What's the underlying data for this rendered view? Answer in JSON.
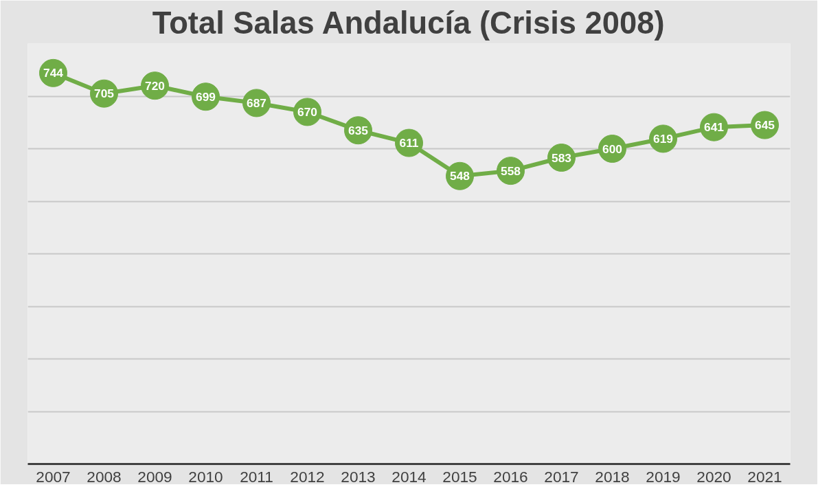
{
  "chart_data": {
    "type": "line",
    "title": "Total Salas Andalucía (Crisis 2008)",
    "categories": [
      "2007",
      "2008",
      "2009",
      "2010",
      "2011",
      "2012",
      "2013",
      "2014",
      "2015",
      "2016",
      "2017",
      "2018",
      "2019",
      "2020",
      "2021"
    ],
    "series": [
      {
        "color": "#70ad47",
        "values": [
          744,
          705,
          720,
          699,
          687,
          670,
          635,
          611,
          548,
          558,
          583,
          600,
          619,
          641,
          645
        ]
      }
    ],
    "ylim": [
      0,
      800
    ],
    "yticks": [
      {
        "value": 0,
        "label": null
      },
      {
        "value": 100,
        "label": null
      },
      {
        "value": 200,
        "label": null
      },
      {
        "value": 300,
        "label": null
      },
      {
        "value": 400,
        "label": null
      },
      {
        "value": 500,
        "label": null
      },
      {
        "value": 600,
        "label": null
      },
      {
        "value": 700,
        "label": null
      },
      {
        "value": 800,
        "label": null
      }
    ],
    "tick_labels": "x",
    "grid": "y",
    "marker": "circle",
    "line_style": "solid",
    "data_labels": true
  }
}
